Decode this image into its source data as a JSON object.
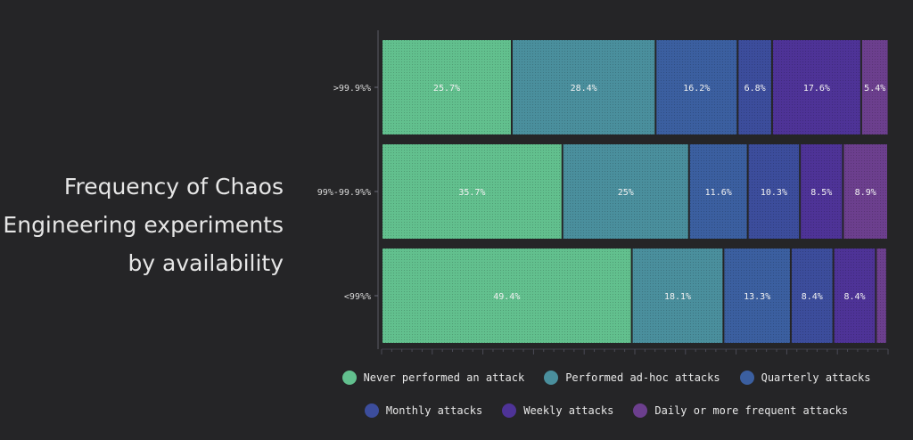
{
  "chart_data": {
    "type": "bar",
    "orientation": "horizontal",
    "stacked": true,
    "normalized": true,
    "title_lines": [
      "Frequency of Chaos",
      "Engineering experiments",
      "by availability"
    ],
    "categories": [
      ">99.9%%",
      "99%-99.9%%",
      "<99%%"
    ],
    "xlim": [
      0,
      100
    ],
    "grid": false,
    "legend_position": "bottom",
    "series": [
      {
        "name": "Never performed an attack",
        "color": "#62c08e",
        "values": [
          25.7,
          35.7,
          49.4
        ],
        "labels": [
          "25.7%",
          "35.7%",
          "49.4%"
        ]
      },
      {
        "name": "Performed ad-hoc attacks",
        "color": "#4a8f9d",
        "values": [
          28.4,
          25,
          18.1
        ],
        "labels": [
          "28.4%",
          "25%",
          "18.1%"
        ]
      },
      {
        "name": "Quarterly attacks",
        "color": "#3b5fa0",
        "values": [
          16.2,
          11.6,
          13.3
        ],
        "labels": [
          "16.2%",
          "11.6%",
          "13.3%"
        ]
      },
      {
        "name": "Monthly attacks",
        "color": "#3c4d9c",
        "values": [
          6.8,
          10.3,
          8.4
        ],
        "labels": [
          "6.8%",
          "10.3%",
          "8.4%"
        ]
      },
      {
        "name": "Weekly attacks",
        "color": "#4e3397",
        "values": [
          17.6,
          8.5,
          8.4
        ],
        "labels": [
          "17.6%",
          "8.5%",
          "8.4%"
        ]
      },
      {
        "name": "Daily or more frequent attacks",
        "color": "#6c3f8e",
        "values": [
          5.4,
          8.9,
          2.2
        ],
        "labels": [
          "5.4%",
          "8.9%",
          ""
        ]
      }
    ]
  }
}
